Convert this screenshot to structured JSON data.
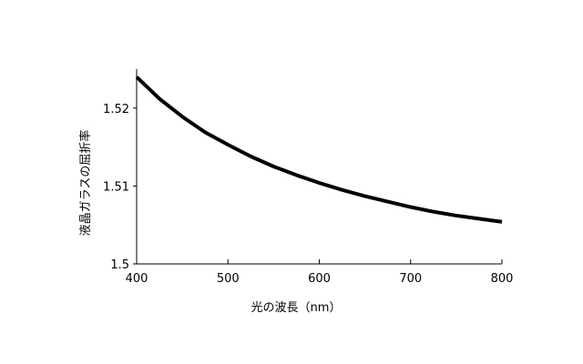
{
  "chart_data": {
    "type": "line",
    "title": "",
    "xlabel": "光の波長（nm）",
    "ylabel": "液晶ガラスの屈折率",
    "xlim": [
      400,
      800
    ],
    "ylim": [
      1.5,
      1.525
    ],
    "x_ticks": [
      400,
      500,
      600,
      700,
      800
    ],
    "x_tick_labels": [
      "400",
      "500",
      "600",
      "700",
      "800"
    ],
    "y_ticks": [
      1.5,
      1.51,
      1.52
    ],
    "y_tick_labels": [
      "1.5",
      "1.51",
      "1.52"
    ],
    "grid": false,
    "series": [
      {
        "color": "#000000",
        "x": [
          400,
          425,
          450,
          475,
          500,
          525,
          550,
          575,
          600,
          625,
          650,
          675,
          700,
          725,
          750,
          775,
          800
        ],
        "y": [
          1.524,
          1.5212,
          1.5189,
          1.5169,
          1.5153,
          1.5138,
          1.5125,
          1.5114,
          1.5104,
          1.5095,
          1.5087,
          1.508,
          1.5073,
          1.5067,
          1.5062,
          1.5058,
          1.5054
        ]
      }
    ]
  }
}
